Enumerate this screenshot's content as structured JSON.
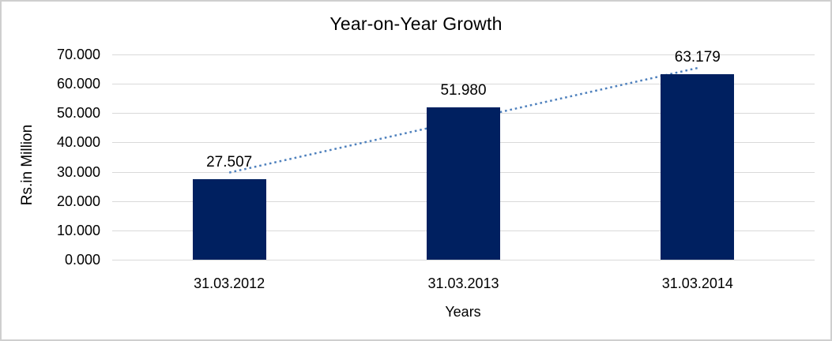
{
  "chart_data": {
    "type": "bar",
    "title": "Year-on-Year Growth",
    "xlabel": "Years",
    "ylabel": "Rs.in Million",
    "categories": [
      "31.03.2012",
      "31.03.2013",
      "31.03.2014"
    ],
    "values": [
      27.507,
      51.98,
      63.179
    ],
    "data_labels": [
      "27.507",
      "51.980",
      "63.179"
    ],
    "ylim": [
      0,
      70
    ],
    "ytick_step": 10,
    "ytick_labels": [
      "0.000",
      "10.000",
      "20.000",
      "30.000",
      "40.000",
      "50.000",
      "60.000",
      "70.000"
    ],
    "grid": "horizontal-only",
    "legend": "none",
    "trendline": {
      "style": "dotted",
      "from_value": 29.72,
      "to_value": 65.39
    },
    "colors": {
      "bar": "#002060",
      "trendline": "#4F81BD",
      "gridline": "#D9D9D9",
      "text": "#000000",
      "frame_border": "#CFCFCF",
      "background": "#FFFFFF"
    }
  }
}
